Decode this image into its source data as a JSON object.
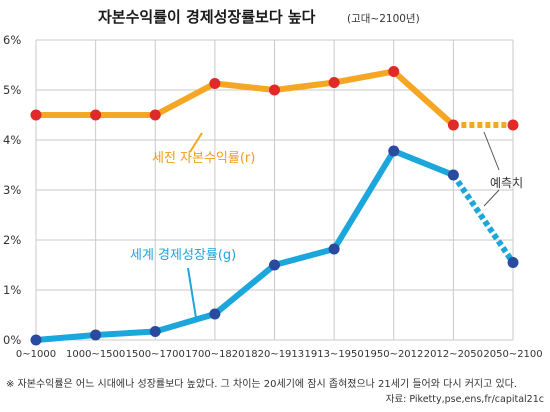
{
  "chart_data": {
    "type": "line",
    "title": "자본수익률이 경제성장률보다 높다",
    "subtitle": "(고대~2100년)",
    "categories": [
      "0~1000",
      "1000~1500",
      "1500~1700",
      "1700~1820",
      "1820~1913",
      "1913~1950",
      "1950~2012",
      "2012~2050",
      "2050~2100"
    ],
    "y_ticks": [
      "0%",
      "1%",
      "2%",
      "3%",
      "4%",
      "5%",
      "6%"
    ],
    "ylim": [
      0,
      6
    ],
    "grid": true,
    "series": [
      {
        "name": "세전 자본수익률(r)",
        "color": "#f5a623",
        "marker": "#e02a2a",
        "values": [
          4.5,
          4.5,
          4.5,
          5.13,
          5.0,
          5.15,
          5.37,
          4.3,
          4.3
        ],
        "projected_from": 7
      },
      {
        "name": "세계 경제성장률(g)",
        "color": "#1ba6dc",
        "marker": "#2a4aa0",
        "values": [
          0.0,
          0.1,
          0.17,
          0.52,
          1.5,
          1.82,
          3.78,
          3.3,
          1.55
        ],
        "projected_from": 7
      }
    ],
    "annotation": "예측치",
    "footnote": "※ 자본수익률은 어느 시대에나 성장률보다 높았다. 그 차이는 20세기에 잠시 좁혀졌으나 21세기 들어와 다시 커지고 있다.",
    "source": "자료: Piketty,pse,ens,fr/capital21c"
  }
}
